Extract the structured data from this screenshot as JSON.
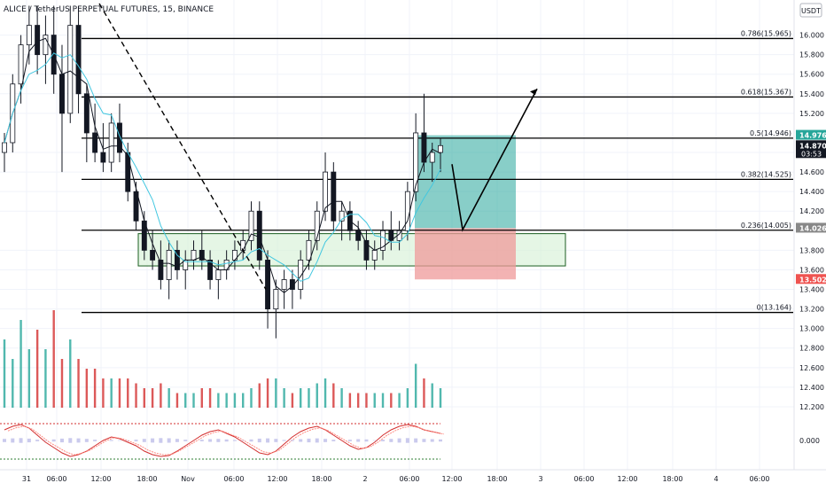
{
  "header": {
    "symbol_title": "ALICE / TetherUS PERPETUAL FUTURES, 15, BINANCE",
    "currency": "USDT"
  },
  "colors": {
    "up": "#131722",
    "down": "#131722",
    "ma_fast": "#131722",
    "ma_slow": "#42c7e0",
    "level_line": "#000000",
    "zone_fill": "#d4f0d4",
    "zone_border": "#1b5e20",
    "target_fill": "#26a69a",
    "stop_fill": "#ef9a9a",
    "volume_up": "#26a69a",
    "volume_down": "#d32f2f",
    "price_label_bg": "#131722",
    "osc_line_1": "#d32f2f",
    "osc_line_2": "#ff8a80",
    "osc_hist": "#b3b3e6"
  },
  "chart_data": {
    "type": "candlestick",
    "symbol": "ALICE / TetherUS PERPETUAL FUTURES",
    "timeframe": "15",
    "exchange": "BINANCE",
    "y_axis": {
      "unit": "USDT",
      "ticks": [
        "16.000",
        "15.800",
        "15.600",
        "15.400",
        "15.200",
        "14.800",
        "14.600",
        "14.400",
        "14.200",
        "13.800",
        "13.600",
        "13.400",
        "13.200",
        "13.000",
        "12.800",
        "12.600",
        "12.400",
        "12.200"
      ],
      "range": [
        12.1,
        16.25
      ]
    },
    "x_axis": {
      "ticks": [
        "31",
        "06:00",
        "12:00",
        "18:00",
        "Nov",
        "06:00",
        "12:00",
        "18:00",
        "2",
        "06:00",
        "12:00",
        "18:00",
        "3",
        "06:00",
        "12:00",
        "18:00",
        "4",
        "06:00"
      ]
    },
    "fib_levels": [
      {
        "label": "0.786(15.965)",
        "value": 15.965
      },
      {
        "label": "0.618(15.367)",
        "value": 15.367
      },
      {
        "label": "0.5(14.946)",
        "value": 14.946
      },
      {
        "label": "0.382(14.525)",
        "value": 14.525
      },
      {
        "label": "0.236(14.005)",
        "value": 14.005
      },
      {
        "label": "0(13.164)",
        "value": 13.164
      }
    ],
    "price_labels": [
      {
        "text": "14.976",
        "value": 14.976,
        "color": "#26a69a"
      },
      {
        "text": "14.870",
        "sub": "03:53",
        "value": 14.87,
        "color": "#131722"
      },
      {
        "text": "14.026",
        "value": 14.026,
        "color": "#888888"
      },
      {
        "text": "13.502",
        "value": 13.502,
        "color": "#ef5350"
      }
    ],
    "demand_zone": {
      "top": 13.97,
      "bottom": 13.64
    },
    "position": {
      "entry": 14.026,
      "target": 14.976,
      "stop": 13.502
    },
    "candles": [
      [
        14.8,
        15.0,
        14.6,
        14.9
      ],
      [
        14.9,
        15.6,
        14.8,
        15.5
      ],
      [
        15.5,
        16.0,
        15.3,
        15.9
      ],
      [
        15.9,
        16.3,
        15.7,
        16.1
      ],
      [
        16.1,
        16.3,
        15.6,
        15.8
      ],
      [
        15.8,
        16.2,
        15.5,
        16.0
      ],
      [
        16.0,
        16.3,
        15.4,
        15.6
      ],
      [
        15.6,
        15.9,
        14.6,
        15.2
      ],
      [
        15.2,
        16.3,
        15.1,
        16.1
      ],
      [
        16.1,
        16.3,
        15.2,
        15.4
      ],
      [
        15.4,
        15.5,
        14.7,
        15.0
      ],
      [
        15.0,
        15.3,
        14.7,
        14.8
      ],
      [
        14.8,
        15.1,
        14.6,
        14.7
      ],
      [
        14.7,
        15.2,
        14.6,
        15.1
      ],
      [
        15.1,
        15.3,
        14.7,
        14.8
      ],
      [
        14.8,
        14.9,
        14.3,
        14.4
      ],
      [
        14.4,
        14.5,
        14.0,
        14.1
      ],
      [
        14.1,
        14.2,
        13.7,
        13.8
      ],
      [
        13.8,
        14.0,
        13.6,
        13.7
      ],
      [
        13.7,
        13.9,
        13.4,
        13.5
      ],
      [
        13.5,
        13.9,
        13.3,
        13.8
      ],
      [
        13.8,
        13.9,
        13.5,
        13.6
      ],
      [
        13.6,
        13.8,
        13.4,
        13.7
      ],
      [
        13.7,
        13.9,
        13.6,
        13.8
      ],
      [
        13.8,
        14.0,
        13.6,
        13.7
      ],
      [
        13.7,
        13.8,
        13.4,
        13.5
      ],
      [
        13.5,
        13.7,
        13.3,
        13.6
      ],
      [
        13.6,
        13.8,
        13.5,
        13.7
      ],
      [
        13.7,
        13.9,
        13.6,
        13.8
      ],
      [
        13.8,
        14.0,
        13.7,
        13.9
      ],
      [
        13.9,
        14.3,
        13.8,
        14.2
      ],
      [
        14.2,
        14.3,
        13.6,
        13.7
      ],
      [
        13.7,
        13.8,
        13.0,
        13.2
      ],
      [
        13.2,
        13.5,
        12.9,
        13.4
      ],
      [
        13.4,
        13.6,
        13.2,
        13.5
      ],
      [
        13.5,
        13.6,
        13.2,
        13.4
      ],
      [
        13.4,
        13.8,
        13.3,
        13.7
      ],
      [
        13.7,
        14.0,
        13.6,
        13.9
      ],
      [
        13.9,
        14.3,
        13.8,
        14.2
      ],
      [
        14.2,
        14.8,
        14.1,
        14.6
      ],
      [
        14.6,
        14.7,
        14.0,
        14.1
      ],
      [
        14.1,
        14.3,
        13.9,
        14.2
      ],
      [
        14.2,
        14.3,
        13.9,
        14.0
      ],
      [
        14.0,
        14.1,
        13.8,
        13.9
      ],
      [
        13.9,
        14.0,
        13.6,
        13.7
      ],
      [
        13.7,
        13.9,
        13.6,
        13.8
      ],
      [
        13.8,
        14.1,
        13.7,
        14.0
      ],
      [
        14.0,
        14.2,
        13.8,
        13.9
      ],
      [
        13.9,
        14.1,
        13.8,
        14.0
      ],
      [
        14.0,
        14.5,
        13.9,
        14.4
      ],
      [
        14.4,
        15.2,
        14.3,
        15.0
      ],
      [
        15.0,
        15.4,
        14.6,
        14.7
      ],
      [
        14.7,
        14.9,
        14.5,
        14.8
      ],
      [
        14.8,
        14.95,
        14.6,
        14.87
      ]
    ],
    "volume": [
      0.7,
      0.5,
      0.9,
      0.6,
      0.8,
      0.6,
      1.0,
      0.5,
      0.7,
      0.5,
      0.4,
      0.4,
      0.3,
      0.3,
      0.3,
      0.3,
      0.25,
      0.2,
      0.2,
      0.25,
      0.2,
      0.15,
      0.15,
      0.15,
      0.2,
      0.2,
      0.15,
      0.15,
      0.15,
      0.15,
      0.2,
      0.25,
      0.3,
      0.3,
      0.2,
      0.15,
      0.2,
      0.2,
      0.25,
      0.3,
      0.25,
      0.2,
      0.15,
      0.15,
      0.15,
      0.15,
      0.15,
      0.15,
      0.15,
      0.2,
      0.45,
      0.3,
      0.25,
      0.2
    ],
    "oscillator": {
      "y_tick": "0.000",
      "line": [
        0.6,
        0.8,
        0.9,
        0.7,
        0.3,
        -0.1,
        -0.4,
        -0.7,
        -0.9,
        -0.8,
        -0.6,
        -0.3,
        0.0,
        0.2,
        0.1,
        -0.1,
        -0.3,
        -0.6,
        -0.8,
        -0.9,
        -0.85,
        -0.6,
        -0.3,
        0.0,
        0.3,
        0.5,
        0.6,
        0.4,
        0.2,
        -0.1,
        -0.4,
        -0.7,
        -0.8,
        -0.6,
        -0.2,
        0.2,
        0.5,
        0.7,
        0.8,
        0.6,
        0.3,
        0.0,
        -0.3,
        -0.5,
        -0.4,
        -0.1,
        0.3,
        0.6,
        0.8,
        0.9,
        0.8,
        0.6,
        0.5,
        0.4
      ]
    }
  }
}
